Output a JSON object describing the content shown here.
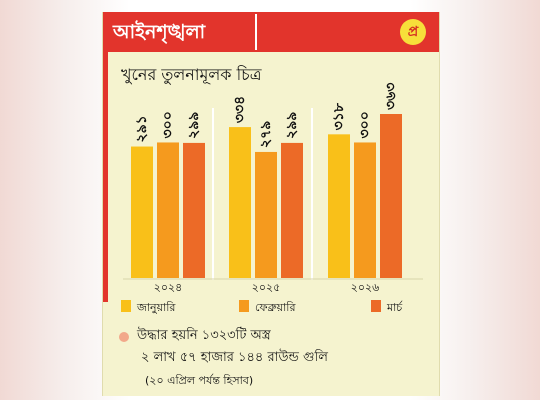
{
  "header": {
    "title": "আইনশৃঙ্খলা",
    "logo_text": "প্র"
  },
  "chart_data": {
    "type": "bar",
    "title": "খুনের তুলনামূলক চিত্র",
    "categories": [
      "২০২৪",
      "২০২৫",
      "২০২৬"
    ],
    "series": [
      {
        "name": "জানুয়ারি",
        "values": [
          291,
          334,
          318
        ],
        "labels": [
          "২৯১",
          "৩৩৪",
          "৩১৮"
        ],
        "color": "#f9c019"
      },
      {
        "name": "ফেব্রুয়ারি",
        "values": [
          300,
          279,
          300
        ],
        "labels": [
          "৩০০",
          "২৭৯",
          "৩০০"
        ],
        "color": "#f59a1e"
      },
      {
        "name": "মার্চ",
        "values": [
          299,
          299,
          363
        ],
        "labels": [
          "২৯৯",
          "২৯৯",
          "৩৬৩"
        ],
        "color": "#ec6a27"
      }
    ],
    "legend_position": "bottom"
  },
  "note": {
    "line1": "উদ্ধার হয়নি ১৩২৩টি অস্ত্র",
    "line2": "২ লাখ ৫৭ হাজার ১৪৪ রাউন্ড গুলি",
    "line3": "(২০ এপ্রিল পর্যন্ত হিসাব)"
  }
}
